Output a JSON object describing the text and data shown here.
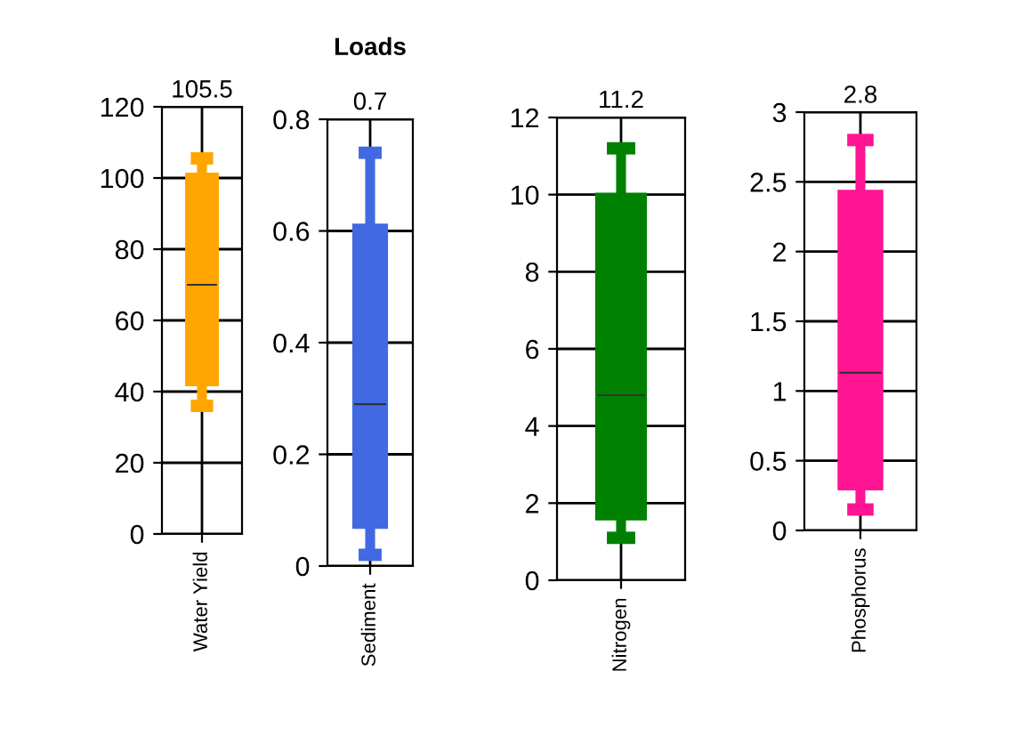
{
  "chart_data": [
    {
      "type": "box",
      "categories": [
        "Water Yield"
      ],
      "color": "#ffa500",
      "boxes": [
        {
          "low": 36,
          "q1": 42,
          "median": 70,
          "q3": 101,
          "high": 105.5
        }
      ],
      "ylim": [
        0,
        120
      ],
      "yticks": [
        0,
        20,
        40,
        60,
        80,
        100,
        120
      ],
      "grid": true,
      "annotations": [
        "105.5"
      ]
    },
    {
      "type": "box",
      "title": "Loads",
      "categories": [
        "Sediment"
      ],
      "color": "#4169e1",
      "boxes": [
        {
          "low": 0.02,
          "q1": 0.07,
          "median": 0.29,
          "q3": 0.61,
          "high": 0.74
        }
      ],
      "ylim": [
        0,
        0.8
      ],
      "yticks": [
        0,
        0.2,
        0.4,
        0.6,
        0.8
      ],
      "grid": true,
      "annotations": [
        "0.7"
      ]
    },
    {
      "type": "box",
      "categories": [
        "Nitrogen"
      ],
      "color": "#008000",
      "boxes": [
        {
          "low": 1.1,
          "q1": 1.6,
          "median": 4.8,
          "q3": 10,
          "high": 11.2
        }
      ],
      "ylim": [
        0,
        12
      ],
      "yticks": [
        0,
        2,
        4,
        6,
        8,
        10,
        12
      ],
      "grid": true,
      "annotations": [
        "11.2"
      ]
    },
    {
      "type": "box",
      "categories": [
        "Phosphorus"
      ],
      "color": "#ff1493",
      "boxes": [
        {
          "low": 0.15,
          "q1": 0.3,
          "median": 1.13,
          "q3": 2.43,
          "high": 2.8
        }
      ],
      "ylim": [
        0,
        3
      ],
      "yticks": [
        0,
        0.5,
        1,
        1.5,
        2,
        2.5,
        3
      ],
      "grid": true,
      "annotations": [
        "2.8"
      ]
    }
  ]
}
